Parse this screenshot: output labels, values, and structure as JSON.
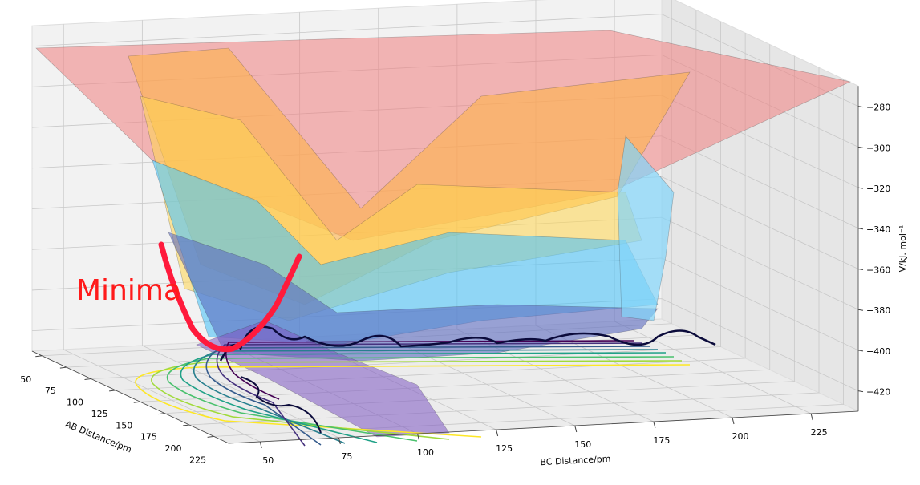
{
  "chart_data": {
    "type": "surface3d",
    "annotation": "Minima",
    "xlabel": "AB Distance/pm",
    "ylabel": "BC Distance/pm",
    "zlabel": "V/kJ. mol⁻¹",
    "xlim": [
      40,
      240
    ],
    "xticks": [
      50,
      75,
      100,
      125,
      150,
      175,
      200,
      225
    ],
    "ylim": [
      40,
      240
    ],
    "yticks": [
      50,
      75,
      100,
      125,
      150,
      175,
      200,
      225
    ],
    "zlim": [
      -430,
      -270
    ],
    "zticks": [
      {
        "value": -280,
        "label": "−280"
      },
      {
        "value": -300,
        "label": "−300"
      },
      {
        "value": -320,
        "label": "−320"
      },
      {
        "value": -340,
        "label": "−340"
      },
      {
        "value": -360,
        "label": "−360"
      },
      {
        "value": -380,
        "label": "−380"
      },
      {
        "value": -400,
        "label": "−400"
      },
      {
        "value": -420,
        "label": "−420"
      }
    ],
    "grid": true
  }
}
